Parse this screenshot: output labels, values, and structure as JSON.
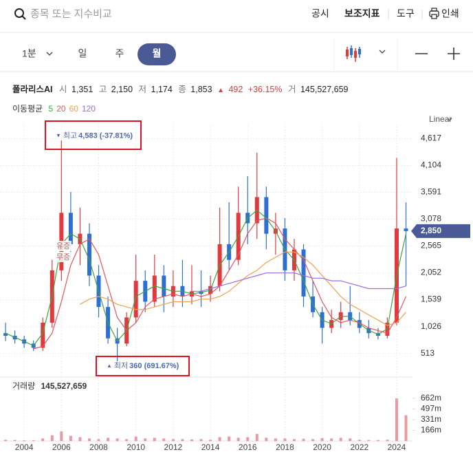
{
  "header": {
    "search_placeholder": "종목 또는 지수비교",
    "menu": [
      "공시",
      "보조지표",
      "도구",
      "인쇄"
    ]
  },
  "toolbar": {
    "periods": [
      "1분",
      "일",
      "주",
      "월"
    ],
    "selected_index": 3
  },
  "quote": {
    "name": "폴라리스AI",
    "fields": [
      {
        "label": "시",
        "value": "1,351"
      },
      {
        "label": "고",
        "value": "2,150"
      },
      {
        "label": "저",
        "value": "1,174"
      },
      {
        "label": "종",
        "value": "1,853"
      }
    ],
    "change_marker": "▲",
    "change": "492",
    "change_pct": "+36.15%",
    "volume_label": "거",
    "volume": "145,527,659"
  },
  "chart_data": {
    "type": "candlestick",
    "scale_label": "Linear",
    "ma_title": "이동평균",
    "x": [
      2003.0,
      2003.5,
      2004.0,
      2004.5,
      2005.0,
      2005.5,
      2006.0,
      2006.5,
      2007.0,
      2007.5,
      2008.0,
      2008.5,
      2009.0,
      2009.5,
      2010.0,
      2010.5,
      2011.0,
      2011.5,
      2012.0,
      2012.5,
      2013.0,
      2013.5,
      2014.0,
      2014.5,
      2015.0,
      2015.5,
      2016.0,
      2016.5,
      2017.0,
      2017.5,
      2018.0,
      2018.5,
      2019.0,
      2019.5,
      2020.0,
      2020.5,
      2021.0,
      2021.5,
      2022.0,
      2022.5,
      2023.0,
      2023.5,
      2024.0,
      2024.5
    ],
    "xlim": [
      2002.85,
      2024.85
    ],
    "xticks": [
      2004,
      2006,
      2008,
      2010,
      2012,
      2014,
      2016,
      2018,
      2020,
      2022,
      2024
    ],
    "open": [
      900,
      850,
      780,
      700,
      620,
      1100,
      2100,
      3200,
      2600,
      2800,
      2000,
      1400,
      800,
      700,
      1200,
      1900,
      1500,
      2000,
      1600,
      1800,
      1600,
      1700,
      1650,
      1800,
      2600,
      2300,
      3200,
      3000,
      3500,
      2800,
      2900,
      2100,
      2500,
      1600,
      1300,
      1000,
      1150,
      1300,
      1150,
      1000,
      900,
      850,
      1100,
      2900
    ],
    "high": [
      1100,
      950,
      850,
      760,
      1200,
      2300,
      4583,
      3600,
      3300,
      3000,
      2200,
      1600,
      1000,
      1300,
      2400,
      2100,
      2400,
      2200,
      2100,
      2300,
      2200,
      2100,
      2000,
      3300,
      3400,
      3700,
      3900,
      4350,
      3700,
      3200,
      3100,
      2700,
      2600,
      1900,
      1400,
      1350,
      1500,
      1800,
      1300,
      1150,
      1000,
      1200,
      4250,
      3400
    ],
    "low": [
      750,
      700,
      620,
      560,
      560,
      1000,
      1900,
      2300,
      2200,
      1800,
      1200,
      700,
      360,
      650,
      1100,
      1300,
      1400,
      1300,
      1400,
      1400,
      1450,
      1400,
      1500,
      1700,
      2100,
      2200,
      2600,
      2700,
      2500,
      2400,
      1900,
      1900,
      1400,
      1200,
      700,
      900,
      1000,
      1050,
      900,
      800,
      780,
      800,
      1050,
      1800
    ],
    "close": [
      850,
      780,
      700,
      620,
      1100,
      2100,
      3200,
      2600,
      2800,
      2000,
      1400,
      800,
      700,
      1200,
      1900,
      1500,
      2000,
      1600,
      1800,
      1600,
      1700,
      1650,
      1800,
      2600,
      2300,
      3200,
      3000,
      3500,
      2800,
      2900,
      2100,
      2500,
      1600,
      1300,
      1000,
      1150,
      1300,
      1150,
      1000,
      900,
      850,
      1100,
      2900,
      2850
    ],
    "up_color": "#e0393e",
    "down_color": "#2f6fd1",
    "series": [
      {
        "name": "5",
        "color": "#3aa53a",
        "values": [
          900,
          820,
          740,
          660,
          900,
          1600,
          2600,
          2800,
          2700,
          2300,
          1700,
          1100,
          750,
          950,
          1600,
          1700,
          1800,
          1750,
          1700,
          1700,
          1650,
          1680,
          1720,
          2200,
          2450,
          2750,
          3100,
          3250,
          3100,
          2850,
          2500,
          2300,
          1900,
          1450,
          1150,
          1080,
          1220,
          1220,
          1080,
          950,
          880,
          980,
          2000,
          2800
        ]
      },
      {
        "name": "20",
        "color": "#e8525a",
        "values": [
          null,
          null,
          null,
          600,
          650,
          900,
          1500,
          2200,
          2600,
          2700,
          2400,
          1800,
          1200,
          950,
          1100,
          1400,
          1550,
          1600,
          1650,
          1600,
          1650,
          1600,
          1650,
          1800,
          2100,
          2400,
          2800,
          3050,
          3100,
          3000,
          2700,
          2500,
          2300,
          1900,
          1500,
          1200,
          1100,
          1150,
          1100,
          1000,
          950,
          900,
          1200,
          1600
        ]
      },
      {
        "name": "60",
        "color": "#f0a050",
        "values": [
          null,
          null,
          null,
          null,
          null,
          null,
          null,
          null,
          1450,
          1550,
          1600,
          1550,
          1450,
          1400,
          1350,
          1350,
          1400,
          1450,
          1500,
          1500,
          1500,
          1550,
          1550,
          1600,
          1700,
          1850,
          2000,
          2100,
          2250,
          2350,
          2450,
          2450,
          2350,
          2200,
          2000,
          1800,
          1600,
          1450,
          1350,
          1250,
          1150,
          1050,
          1100,
          1300
        ]
      },
      {
        "name": "120",
        "color": "#9b6be0",
        "values": [
          null,
          null,
          null,
          null,
          null,
          null,
          null,
          null,
          null,
          null,
          null,
          null,
          null,
          null,
          null,
          null,
          null,
          null,
          null,
          null,
          1700,
          1700,
          1750,
          1800,
          1850,
          1900,
          1950,
          2000,
          2050,
          2050,
          2050,
          2050,
          2000,
          1950,
          1950,
          1900,
          1900,
          1850,
          1800,
          1750,
          1750,
          1750,
          1750,
          1800
        ]
      }
    ],
    "ylim": [
      100,
      4900
    ],
    "yticks": [
      {
        "value": 4617,
        "label": "4,617"
      },
      {
        "value": 4104,
        "label": "4,104"
      },
      {
        "value": 3591,
        "label": "3,591"
      },
      {
        "value": 3078,
        "label": "3,078"
      },
      {
        "value": 2565,
        "label": "2,565"
      },
      {
        "value": 2052,
        "label": "2,052"
      },
      {
        "value": 1539,
        "label": "1,539"
      },
      {
        "value": 1026,
        "label": "1,026"
      },
      513
    ],
    "grid": true,
    "current": {
      "value": 2850,
      "label": "2,850",
      "color": "#4a5a96"
    },
    "annotations": [
      {
        "marker": "▼",
        "text": "최고",
        "label": "4,583 (-37.81%)"
      },
      {
        "marker": "▲",
        "text": "최저",
        "label": "360 (691.67%)"
      }
    ],
    "events": [
      "유증",
      "무증"
    ],
    "volume": {
      "title": "거래량",
      "total": "145,527,659",
      "color": "#e79aa2",
      "values": [
        20000000,
        15000000,
        10000000,
        12000000,
        40000000,
        90000000,
        150000000,
        80000000,
        60000000,
        40000000,
        30000000,
        50000000,
        40000000,
        30000000,
        70000000,
        40000000,
        50000000,
        40000000,
        30000000,
        30000000,
        25000000,
        30000000,
        20000000,
        60000000,
        70000000,
        50000000,
        60000000,
        110000000,
        50000000,
        40000000,
        40000000,
        30000000,
        35000000,
        30000000,
        45000000,
        40000000,
        50000000,
        40000000,
        20000000,
        15000000,
        15000000,
        20000000,
        660000000,
        400000000
      ],
      "ylim": [
        0,
        810000000
      ],
      "yticks": [
        {
          "value": 662000000,
          "label": "662m"
        },
        {
          "value": 497000000,
          "label": "497m"
        },
        {
          "value": 331000000,
          "label": "331m"
        },
        {
          "value": 166000000,
          "label": "166m"
        }
      ]
    }
  }
}
